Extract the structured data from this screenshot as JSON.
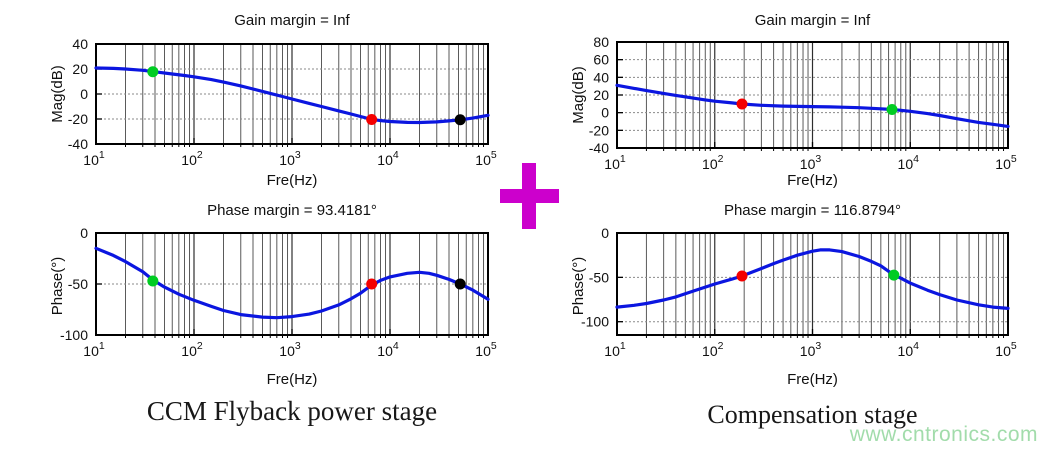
{
  "page": {
    "watermark": "www.cntronics.com",
    "plus_symbol": "+",
    "colors": {
      "plus": "#cc00cc",
      "curve": "#0b16e0",
      "marker_green": "#00cc22",
      "marker_red": "#f40000",
      "marker_black": "#000000",
      "grid_major": "#2e2e2e",
      "grid_minor": "#5a5a5a",
      "grid_horizontal": "#8a8a8a",
      "axis_border": "#000000",
      "watermark_green": "#92d69c"
    }
  },
  "captions": {
    "left": "CCM Flyback power stage",
    "right": "Compensation stage"
  },
  "chart_data": [
    {
      "id": "flyback-mag",
      "type": "line",
      "title": "Gain margin = Inf",
      "xlabel": "Fre(Hz)",
      "ylabel": "Mag(dB)",
      "x_scale": "log",
      "xlim": [
        10,
        100000
      ],
      "xticks": [
        "10^1",
        "10^2",
        "10^3",
        "10^4",
        "10^5"
      ],
      "ylim": [
        -40,
        40
      ],
      "yticks": [
        40,
        20,
        0,
        -20,
        -40
      ],
      "grid": true,
      "legend": "none",
      "series": [
        {
          "name": "magnitude",
          "points": [
            [
              10,
              20.8
            ],
            [
              15,
              20.5
            ],
            [
              20,
              20
            ],
            [
              30,
              19
            ],
            [
              40,
              17.8
            ],
            [
              60,
              16
            ],
            [
              80,
              14.8
            ],
            [
              100,
              13.8
            ],
            [
              150,
              11.5
            ],
            [
              200,
              9.5
            ],
            [
              300,
              6.5
            ],
            [
              400,
              4
            ],
            [
              600,
              0.5
            ],
            [
              800,
              -2
            ],
            [
              1000,
              -4
            ],
            [
              1500,
              -7.5
            ],
            [
              2000,
              -10
            ],
            [
              3000,
              -13.5
            ],
            [
              4000,
              -16
            ],
            [
              5000,
              -18
            ],
            [
              6500,
              -20.3
            ],
            [
              8000,
              -21.3
            ],
            [
              10000,
              -22
            ],
            [
              15000,
              -22.7
            ],
            [
              20000,
              -22.8
            ],
            [
              30000,
              -22.3
            ],
            [
              40000,
              -21.5
            ],
            [
              52000,
              -20.6
            ],
            [
              70000,
              -19.3
            ],
            [
              100000,
              -17
            ]
          ]
        }
      ],
      "markers": [
        {
          "x": 38,
          "y": 17.8,
          "color": "#00cc22",
          "name": "green-marker"
        },
        {
          "x": 6500,
          "y": -20.4,
          "color": "#f40000",
          "name": "red-marker"
        },
        {
          "x": 52000,
          "y": -20.6,
          "color": "#000000",
          "name": "black-marker"
        }
      ]
    },
    {
      "id": "flyback-phase",
      "type": "line",
      "title": "Phase margin = 93.4181°",
      "xlabel": "Fre(Hz)",
      "ylabel": "Phase(°)",
      "x_scale": "log",
      "xlim": [
        10,
        100000
      ],
      "xticks": [
        "10^1",
        "10^2",
        "10^3",
        "10^4",
        "10^5"
      ],
      "ylim": [
        -100,
        0
      ],
      "yticks": [
        0,
        -50,
        -100
      ],
      "grid": true,
      "legend": "none",
      "series": [
        {
          "name": "phase",
          "points": [
            [
              10,
              -15
            ],
            [
              15,
              -22
            ],
            [
              20,
              -28
            ],
            [
              30,
              -38
            ],
            [
              38,
              -46
            ],
            [
              50,
              -53
            ],
            [
              70,
              -60
            ],
            [
              100,
              -66
            ],
            [
              150,
              -72
            ],
            [
              200,
              -76
            ],
            [
              300,
              -80
            ],
            [
              500,
              -82.5
            ],
            [
              700,
              -83
            ],
            [
              1000,
              -82
            ],
            [
              1500,
              -79.5
            ],
            [
              2000,
              -76.5
            ],
            [
              3000,
              -70.5
            ],
            [
              4000,
              -64.5
            ],
            [
              5000,
              -59
            ],
            [
              6500,
              -51
            ],
            [
              8000,
              -46.5
            ],
            [
              10000,
              -43
            ],
            [
              15000,
              -39.5
            ],
            [
              20000,
              -38.5
            ],
            [
              25000,
              -39.5
            ],
            [
              30000,
              -41.5
            ],
            [
              40000,
              -45.5
            ],
            [
              52000,
              -50
            ],
            [
              70000,
              -56
            ],
            [
              100000,
              -65
            ]
          ]
        }
      ],
      "markers": [
        {
          "x": 38,
          "y": -47,
          "color": "#00cc22",
          "name": "green-marker"
        },
        {
          "x": 6500,
          "y": -50,
          "color": "#f40000",
          "name": "red-marker"
        },
        {
          "x": 52000,
          "y": -50,
          "color": "#000000",
          "name": "black-marker"
        }
      ]
    },
    {
      "id": "comp-mag",
      "type": "line",
      "title": "Gain margin = Inf",
      "xlabel": "Fre(Hz)",
      "ylabel": "Mag(dB)",
      "x_scale": "log",
      "xlim": [
        10,
        100000
      ],
      "xticks": [
        "10^1",
        "10^2",
        "10^3",
        "10^4",
        "10^5"
      ],
      "ylim": [
        -40,
        80
      ],
      "yticks": [
        80,
        60,
        40,
        20,
        0,
        -20,
        -40
      ],
      "grid": true,
      "legend": "none",
      "series": [
        {
          "name": "magnitude",
          "points": [
            [
              10,
              31
            ],
            [
              15,
              27.5
            ],
            [
              20,
              25
            ],
            [
              30,
              21.8
            ],
            [
              40,
              19.5
            ],
            [
              60,
              16.5
            ],
            [
              80,
              14.5
            ],
            [
              100,
              13
            ],
            [
              150,
              11
            ],
            [
              190,
              9.8
            ],
            [
              300,
              8.3
            ],
            [
              500,
              7.4
            ],
            [
              700,
              7.1
            ],
            [
              1000,
              6.9
            ],
            [
              1500,
              6.5
            ],
            [
              2000,
              6.2
            ],
            [
              3000,
              5.6
            ],
            [
              4000,
              5
            ],
            [
              5000,
              4.4
            ],
            [
              6500,
              3.6
            ],
            [
              8000,
              2.7
            ],
            [
              10000,
              1.5
            ],
            [
              15000,
              -1
            ],
            [
              20000,
              -3.2
            ],
            [
              30000,
              -6.8
            ],
            [
              40000,
              -9.2
            ],
            [
              50000,
              -11
            ],
            [
              70000,
              -13.2
            ],
            [
              100000,
              -15.5
            ]
          ]
        }
      ],
      "markers": [
        {
          "x": 190,
          "y": 9.8,
          "color": "#f40000",
          "name": "red-marker"
        },
        {
          "x": 6500,
          "y": 3.6,
          "color": "#00cc22",
          "name": "green-marker"
        }
      ]
    },
    {
      "id": "comp-phase",
      "type": "line",
      "title": "Phase margin = 116.8794°",
      "xlabel": "Fre(Hz)",
      "ylabel": "Phase(°)",
      "x_scale": "log",
      "xlim": [
        10,
        100000
      ],
      "xticks": [
        "10^1",
        "10^2",
        "10^3",
        "10^4",
        "10^5"
      ],
      "ylim": [
        -115,
        0
      ],
      "yticks": [
        0,
        -50,
        -100
      ],
      "grid": true,
      "legend": "none",
      "series": [
        {
          "name": "phase",
          "points": [
            [
              10,
              -83.5
            ],
            [
              15,
              -81.5
            ],
            [
              20,
              -79.5
            ],
            [
              30,
              -75.5
            ],
            [
              40,
              -72
            ],
            [
              60,
              -65.5
            ],
            [
              80,
              -61
            ],
            [
              100,
              -57.5
            ],
            [
              150,
              -52
            ],
            [
              190,
              -48.5
            ],
            [
              300,
              -40
            ],
            [
              400,
              -34.5
            ],
            [
              500,
              -30.5
            ],
            [
              700,
              -25
            ],
            [
              1000,
              -20.5
            ],
            [
              1200,
              -19
            ],
            [
              1500,
              -19
            ],
            [
              2000,
              -21
            ],
            [
              3000,
              -26.5
            ],
            [
              4000,
              -32
            ],
            [
              5000,
              -37
            ],
            [
              6800,
              -47.5
            ],
            [
              8000,
              -51
            ],
            [
              10000,
              -56.5
            ],
            [
              15000,
              -64.5
            ],
            [
              20000,
              -69.5
            ],
            [
              30000,
              -75.5
            ],
            [
              50000,
              -81
            ],
            [
              70000,
              -83.5
            ],
            [
              100000,
              -85
            ]
          ]
        }
      ],
      "markers": [
        {
          "x": 190,
          "y": -48.5,
          "color": "#f40000",
          "name": "red-marker"
        },
        {
          "x": 6800,
          "y": -47.5,
          "color": "#00cc22",
          "name": "green-marker"
        }
      ]
    }
  ]
}
